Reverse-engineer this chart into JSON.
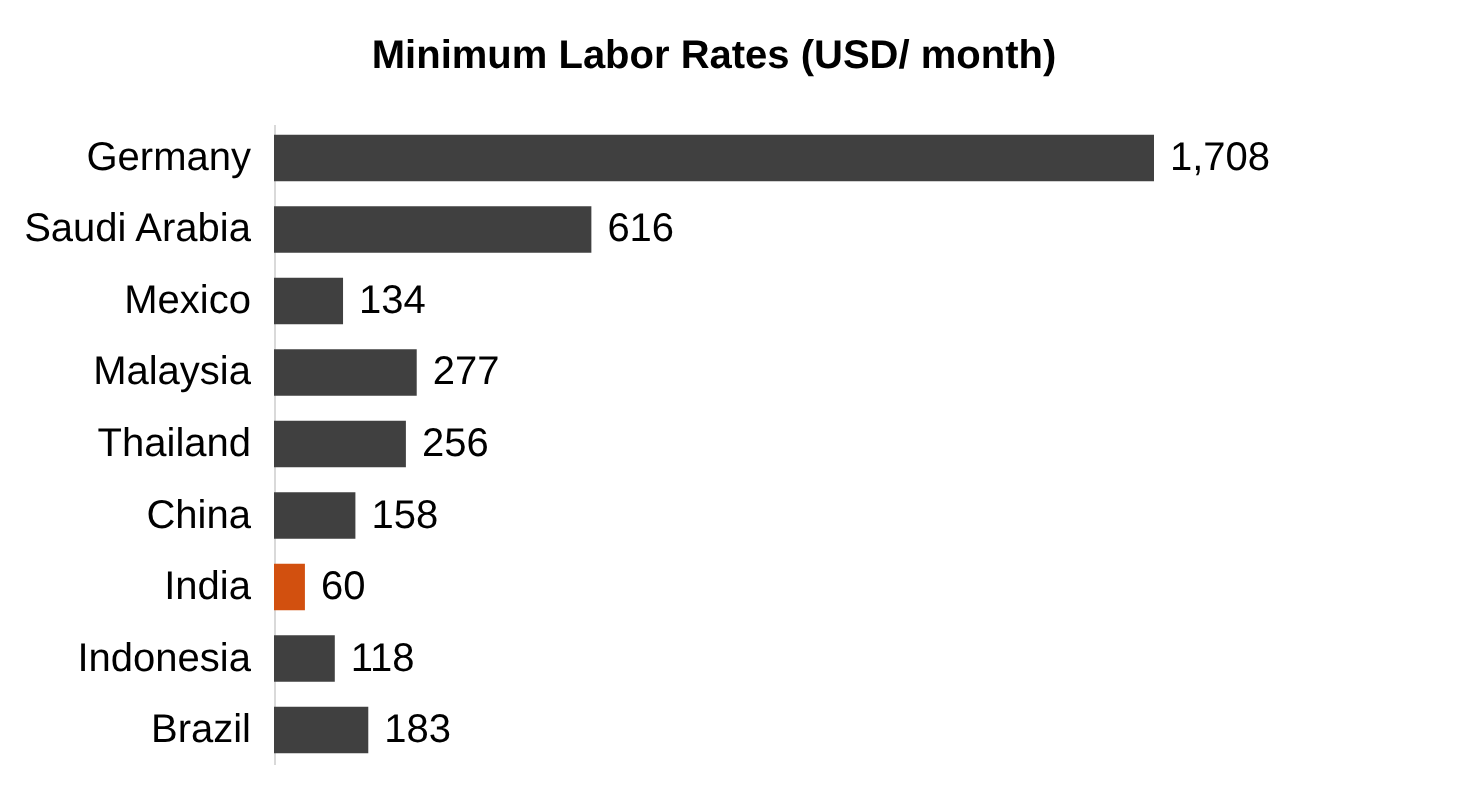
{
  "chart_data": {
    "type": "bar",
    "orientation": "horizontal",
    "title": "Minimum Labor Rates (USD/ month)",
    "categories": [
      "Germany",
      "Saudi Arabia",
      "Mexico",
      "Malaysia",
      "Thailand",
      "China",
      "India",
      "Indonesia",
      "Brazil"
    ],
    "values": [
      1708,
      616,
      134,
      277,
      256,
      158,
      60,
      118,
      183
    ],
    "colors": [
      "#404040",
      "#404040",
      "#404040",
      "#404040",
      "#404040",
      "#404040",
      "#d2500f",
      "#404040",
      "#404040"
    ],
    "value_labels": [
      "1,708",
      "616",
      "134",
      "277",
      "256",
      "158",
      "60",
      "118",
      "183"
    ]
  }
}
